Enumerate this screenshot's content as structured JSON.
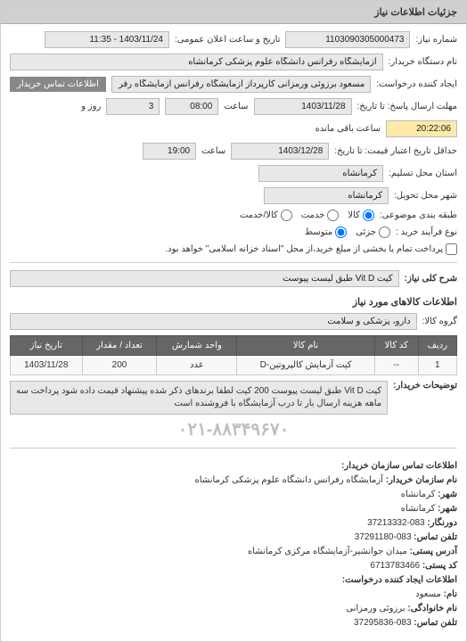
{
  "panel_title": "جزئیات اطلاعات نیاز",
  "fields": {
    "req_no_label": "شماره نیاز:",
    "req_no": "1103090305000473",
    "announce_label": "تاریخ و ساعت اعلان عمومی:",
    "announce": "1403/11/24 - 11:35",
    "buyer_device_label": "نام دستگاه خریدار:",
    "buyer_device": "آزمایشگاه رفرانس دانشگاه علوم پزشکی کرمانشاه",
    "requester_label": "ایجاد کننده درخواست:",
    "requester": "مسعود برزوئی ورمزانی کارپرداز آزمایشگاه رفرانس آزمایشگاه رفرانس دانشگاه ع",
    "contact_btn": "اطلاعات تماس خریدار",
    "reply_deadline_label": "مهلت ارسال پاسخ: تا تاریخ:",
    "reply_date": "1403/11/28",
    "time_label": "ساعت",
    "reply_time": "08:00",
    "and_label": "و",
    "days_label": "روز و",
    "remain_days": "3",
    "remain_time": "20:22:06",
    "remain_suffix": "ساعت باقی مانده",
    "price_deadline_label": "حداقل تاریخ اعتبار قیمت: تا تاریخ:",
    "price_date": "1403/12/28",
    "price_time": "19:00",
    "province_label": "استان محل تسلیم:",
    "province": "کرمانشاه",
    "city_label": "شهر محل تحویل:",
    "city": "کرمانشاه",
    "subject_group_label": "طبقه بندی موضوعی:",
    "subject_goods": "کالا",
    "subject_service": "خدمت",
    "subject_both": "کالا/خدمت",
    "process_type_label": "نوع فرآیند خرید :",
    "proc_partial": "جزئی",
    "proc_medium": "متوسط",
    "proc_note": "پرداخت تمام یا بخشی از مبلغ خرید،از محل \"اسناد خزانه اسلامی\" خواهد بود.",
    "need_title_label": "شرح کلی نیاز:",
    "need_title": "کیت Vit D طبق لیست پیوست",
    "goods_section": "اطلاعات کالاهای مورد نیاز",
    "goods_group_label": "گروه کالا:",
    "goods_group": "دارو، پزشکی و سلامت"
  },
  "table": {
    "headers": [
      "ردیف",
      "کد کالا",
      "نام کالا",
      "واحد شمارش",
      "تعداد / مقدار",
      "تاریخ نیاز"
    ],
    "rows": [
      [
        "1",
        "--",
        "کیت آزمایش کالپروتین-D",
        "عدد",
        "200",
        "1403/11/28"
      ]
    ]
  },
  "explain": {
    "label": "توضیحات خریدار:",
    "text": "کیت Vit D طبق لیست پیوست 200 کیت لطفا برندهای ذکر شده پیشنهاد قیمت داده شود پرداخت سه ماهه هزینه ارسال بار تا درب آزمایشگاه با فروشنده است"
  },
  "watermark": "۰۲۱-۸۸۳۴۹۶۷۰",
  "contact": {
    "header": "اطلاعات تماس سازمان خریدار:",
    "org_label": "نام سازمان خریدار:",
    "org": "آزمایشگاه رفرانس دانشگاه علوم پزشکی کرمانشاه",
    "prov_label": "شهر:",
    "prov": "کرمانشاه",
    "city2_label": "شهر:",
    "city2": "کرمانشاه",
    "fax_label": "دورنگار:",
    "fax": "083-37213332",
    "tel_label": "تلفن تماس:",
    "tel": "083-37291180",
    "postcode_label": "کد پستی:",
    "postcode": "6713783466",
    "address_label": "آدرس پستی:",
    "address": "میدان جوانشیر-آزمایشگاه مرکزی کرمانشاه",
    "create_info_label": "اطلاعات ایجاد کننده درخواست:",
    "name_label": "نام:",
    "name": "مسعود",
    "family_label": "نام خانوادگی:",
    "family": "برزوئی ورمزانی",
    "tel2_label": "تلفن تماس:",
    "tel2": "083-37295836"
  }
}
